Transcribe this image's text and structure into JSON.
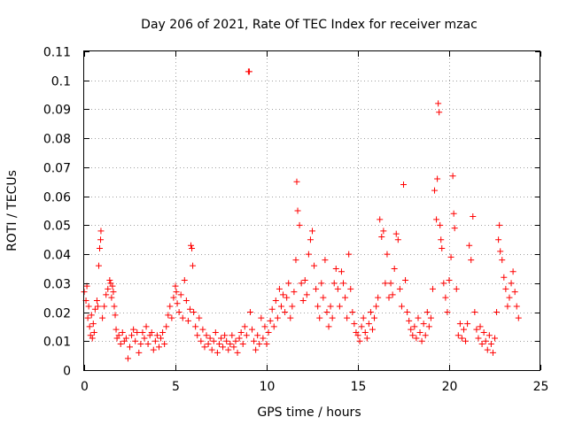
{
  "chart_data": {
    "type": "scatter",
    "title": "Day 206 of 2021, Rate Of TEC Index for receiver mzac",
    "xlabel": "GPS time / hours",
    "ylabel": "ROTI / TECUs",
    "xlim": [
      0,
      25
    ],
    "ylim": [
      0,
      0.11
    ],
    "xticks": [
      0,
      5,
      10,
      15,
      20,
      25
    ],
    "xtick_labels": [
      "0",
      "5",
      "10",
      "15",
      "20",
      "25"
    ],
    "yticks": [
      0,
      0.01,
      0.02,
      0.03,
      0.04,
      0.05,
      0.06,
      0.07,
      0.08,
      0.09,
      0.1,
      0.11
    ],
    "ytick_labels": [
      "0",
      "0.01",
      "0.02",
      "0.03",
      "0.04",
      "0.05",
      "0.06",
      "0.07",
      "0.08",
      "0.09",
      "0.1",
      "0.11"
    ],
    "grid": true,
    "marker": "+",
    "color": "#ff0000",
    "series": [
      {
        "name": "ROTI",
        "points": [
          [
            0.0,
            0.027
          ],
          [
            0.1,
            0.024
          ],
          [
            0.15,
            0.029
          ],
          [
            0.2,
            0.018
          ],
          [
            0.25,
            0.022
          ],
          [
            0.3,
            0.015
          ],
          [
            0.35,
            0.012
          ],
          [
            0.4,
            0.019
          ],
          [
            0.45,
            0.011
          ],
          [
            0.5,
            0.016
          ],
          [
            0.55,
            0.013
          ],
          [
            0.6,
            0.021
          ],
          [
            0.7,
            0.024
          ],
          [
            0.75,
            0.022
          ],
          [
            0.8,
            0.036
          ],
          [
            0.85,
            0.042
          ],
          [
            0.9,
            0.045
          ],
          [
            0.92,
            0.048
          ],
          [
            1.0,
            0.018
          ],
          [
            1.1,
            0.022
          ],
          [
            1.2,
            0.026
          ],
          [
            1.3,
            0.028
          ],
          [
            1.4,
            0.031
          ],
          [
            1.45,
            0.03
          ],
          [
            1.5,
            0.025
          ],
          [
            1.55,
            0.029
          ],
          [
            1.6,
            0.027
          ],
          [
            1.65,
            0.022
          ],
          [
            1.7,
            0.019
          ],
          [
            1.75,
            0.014
          ],
          [
            1.8,
            0.011
          ],
          [
            1.9,
            0.012
          ],
          [
            2.0,
            0.009
          ],
          [
            2.1,
            0.013
          ],
          [
            2.2,
            0.01
          ],
          [
            2.3,
            0.011
          ],
          [
            2.4,
            0.004
          ],
          [
            2.5,
            0.008
          ],
          [
            2.6,
            0.012
          ],
          [
            2.7,
            0.014
          ],
          [
            2.8,
            0.01
          ],
          [
            2.9,
            0.013
          ],
          [
            3.0,
            0.006
          ],
          [
            3.1,
            0.009
          ],
          [
            3.2,
            0.013
          ],
          [
            3.3,
            0.011
          ],
          [
            3.4,
            0.015
          ],
          [
            3.5,
            0.009
          ],
          [
            3.6,
            0.012
          ],
          [
            3.7,
            0.013
          ],
          [
            3.8,
            0.007
          ],
          [
            3.9,
            0.01
          ],
          [
            4.0,
            0.012
          ],
          [
            4.1,
            0.008
          ],
          [
            4.2,
            0.011
          ],
          [
            4.3,
            0.013
          ],
          [
            4.4,
            0.009
          ],
          [
            4.5,
            0.015
          ],
          [
            4.6,
            0.019
          ],
          [
            4.7,
            0.022
          ],
          [
            4.8,
            0.018
          ],
          [
            4.9,
            0.025
          ],
          [
            5.0,
            0.029
          ],
          [
            5.05,
            0.027
          ],
          [
            5.1,
            0.023
          ],
          [
            5.2,
            0.02
          ],
          [
            5.3,
            0.026
          ],
          [
            5.4,
            0.018
          ],
          [
            5.5,
            0.031
          ],
          [
            5.6,
            0.024
          ],
          [
            5.7,
            0.017
          ],
          [
            5.8,
            0.021
          ],
          [
            5.85,
            0.043
          ],
          [
            5.9,
            0.042
          ],
          [
            5.95,
            0.036
          ],
          [
            6.0,
            0.02
          ],
          [
            6.1,
            0.015
          ],
          [
            6.2,
            0.012
          ],
          [
            6.3,
            0.018
          ],
          [
            6.4,
            0.01
          ],
          [
            6.5,
            0.014
          ],
          [
            6.6,
            0.008
          ],
          [
            6.7,
            0.012
          ],
          [
            6.8,
            0.009
          ],
          [
            6.9,
            0.011
          ],
          [
            7.0,
            0.007
          ],
          [
            7.1,
            0.01
          ],
          [
            7.2,
            0.013
          ],
          [
            7.3,
            0.006
          ],
          [
            7.4,
            0.009
          ],
          [
            7.5,
            0.011
          ],
          [
            7.6,
            0.008
          ],
          [
            7.7,
            0.012
          ],
          [
            7.8,
            0.01
          ],
          [
            7.9,
            0.007
          ],
          [
            8.0,
            0.009
          ],
          [
            8.1,
            0.012
          ],
          [
            8.2,
            0.008
          ],
          [
            8.3,
            0.01
          ],
          [
            8.4,
            0.006
          ],
          [
            8.5,
            0.011
          ],
          [
            8.6,
            0.013
          ],
          [
            8.7,
            0.009
          ],
          [
            8.8,
            0.015
          ],
          [
            8.9,
            0.012
          ],
          [
            9.0,
            0.103
          ],
          [
            9.05,
            0.103
          ],
          [
            9.1,
            0.02
          ],
          [
            9.2,
            0.014
          ],
          [
            9.3,
            0.01
          ],
          [
            9.4,
            0.007
          ],
          [
            9.5,
            0.012
          ],
          [
            9.6,
            0.009
          ],
          [
            9.7,
            0.018
          ],
          [
            9.8,
            0.011
          ],
          [
            9.9,
            0.015
          ],
          [
            10.0,
            0.009
          ],
          [
            10.1,
            0.013
          ],
          [
            10.2,
            0.017
          ],
          [
            10.3,
            0.021
          ],
          [
            10.4,
            0.015
          ],
          [
            10.5,
            0.024
          ],
          [
            10.6,
            0.018
          ],
          [
            10.7,
            0.028
          ],
          [
            10.8,
            0.022
          ],
          [
            10.9,
            0.026
          ],
          [
            11.0,
            0.02
          ],
          [
            11.1,
            0.025
          ],
          [
            11.2,
            0.03
          ],
          [
            11.3,
            0.018
          ],
          [
            11.4,
            0.022
          ],
          [
            11.5,
            0.027
          ],
          [
            11.6,
            0.038
          ],
          [
            11.65,
            0.065
          ],
          [
            11.7,
            0.055
          ],
          [
            11.8,
            0.05
          ],
          [
            11.9,
            0.03
          ],
          [
            12.0,
            0.024
          ],
          [
            12.1,
            0.031
          ],
          [
            12.2,
            0.026
          ],
          [
            12.3,
            0.04
          ],
          [
            12.4,
            0.045
          ],
          [
            12.5,
            0.048
          ],
          [
            12.6,
            0.036
          ],
          [
            12.7,
            0.028
          ],
          [
            12.8,
            0.022
          ],
          [
            12.9,
            0.018
          ],
          [
            13.0,
            0.03
          ],
          [
            13.1,
            0.025
          ],
          [
            13.2,
            0.038
          ],
          [
            13.3,
            0.02
          ],
          [
            13.4,
            0.015
          ],
          [
            13.5,
            0.022
          ],
          [
            13.6,
            0.018
          ],
          [
            13.7,
            0.03
          ],
          [
            13.8,
            0.035
          ],
          [
            13.9,
            0.028
          ],
          [
            14.0,
            0.022
          ],
          [
            14.1,
            0.034
          ],
          [
            14.2,
            0.03
          ],
          [
            14.3,
            0.025
          ],
          [
            14.4,
            0.018
          ],
          [
            14.5,
            0.04
          ],
          [
            14.6,
            0.028
          ],
          [
            14.7,
            0.02
          ],
          [
            14.8,
            0.016
          ],
          [
            14.9,
            0.013
          ],
          [
            15.0,
            0.012
          ],
          [
            15.1,
            0.01
          ],
          [
            15.2,
            0.015
          ],
          [
            15.3,
            0.018
          ],
          [
            15.4,
            0.013
          ],
          [
            15.5,
            0.011
          ],
          [
            15.6,
            0.016
          ],
          [
            15.7,
            0.02
          ],
          [
            15.8,
            0.014
          ],
          [
            15.9,
            0.018
          ],
          [
            16.0,
            0.022
          ],
          [
            16.1,
            0.025
          ],
          [
            16.2,
            0.052
          ],
          [
            16.3,
            0.046
          ],
          [
            16.4,
            0.048
          ],
          [
            16.5,
            0.03
          ],
          [
            16.6,
            0.04
          ],
          [
            16.7,
            0.025
          ],
          [
            16.8,
            0.03
          ],
          [
            16.9,
            0.026
          ],
          [
            17.0,
            0.035
          ],
          [
            17.1,
            0.047
          ],
          [
            17.2,
            0.045
          ],
          [
            17.3,
            0.028
          ],
          [
            17.4,
            0.022
          ],
          [
            17.5,
            0.064
          ],
          [
            17.6,
            0.031
          ],
          [
            17.7,
            0.02
          ],
          [
            17.8,
            0.017
          ],
          [
            17.9,
            0.014
          ],
          [
            18.0,
            0.012
          ],
          [
            18.1,
            0.015
          ],
          [
            18.2,
            0.011
          ],
          [
            18.3,
            0.018
          ],
          [
            18.4,
            0.013
          ],
          [
            18.5,
            0.01
          ],
          [
            18.6,
            0.016
          ],
          [
            18.7,
            0.012
          ],
          [
            18.8,
            0.02
          ],
          [
            18.9,
            0.015
          ],
          [
            19.0,
            0.018
          ],
          [
            19.1,
            0.028
          ],
          [
            19.2,
            0.062
          ],
          [
            19.3,
            0.052
          ],
          [
            19.35,
            0.066
          ],
          [
            19.4,
            0.092
          ],
          [
            19.45,
            0.089
          ],
          [
            19.5,
            0.05
          ],
          [
            19.55,
            0.045
          ],
          [
            19.6,
            0.042
          ],
          [
            19.7,
            0.03
          ],
          [
            19.8,
            0.025
          ],
          [
            19.9,
            0.02
          ],
          [
            20.0,
            0.031
          ],
          [
            20.1,
            0.039
          ],
          [
            20.2,
            0.067
          ],
          [
            20.25,
            0.054
          ],
          [
            20.3,
            0.049
          ],
          [
            20.4,
            0.028
          ],
          [
            20.5,
            0.012
          ],
          [
            20.6,
            0.016
          ],
          [
            20.7,
            0.011
          ],
          [
            20.8,
            0.014
          ],
          [
            20.9,
            0.01
          ],
          [
            21.0,
            0.016
          ],
          [
            21.1,
            0.043
          ],
          [
            21.2,
            0.038
          ],
          [
            21.3,
            0.053
          ],
          [
            21.4,
            0.02
          ],
          [
            21.5,
            0.014
          ],
          [
            21.6,
            0.011
          ],
          [
            21.7,
            0.015
          ],
          [
            21.8,
            0.009
          ],
          [
            21.9,
            0.013
          ],
          [
            22.0,
            0.01
          ],
          [
            22.1,
            0.007
          ],
          [
            22.2,
            0.012
          ],
          [
            22.3,
            0.009
          ],
          [
            22.4,
            0.006
          ],
          [
            22.5,
            0.011
          ],
          [
            22.6,
            0.02
          ],
          [
            22.7,
            0.045
          ],
          [
            22.75,
            0.05
          ],
          [
            22.8,
            0.041
          ],
          [
            22.9,
            0.038
          ],
          [
            23.0,
            0.032
          ],
          [
            23.1,
            0.028
          ],
          [
            23.2,
            0.022
          ],
          [
            23.3,
            0.025
          ],
          [
            23.4,
            0.03
          ],
          [
            23.5,
            0.034
          ],
          [
            23.6,
            0.027
          ],
          [
            23.7,
            0.022
          ],
          [
            23.8,
            0.018
          ]
        ]
      }
    ]
  }
}
